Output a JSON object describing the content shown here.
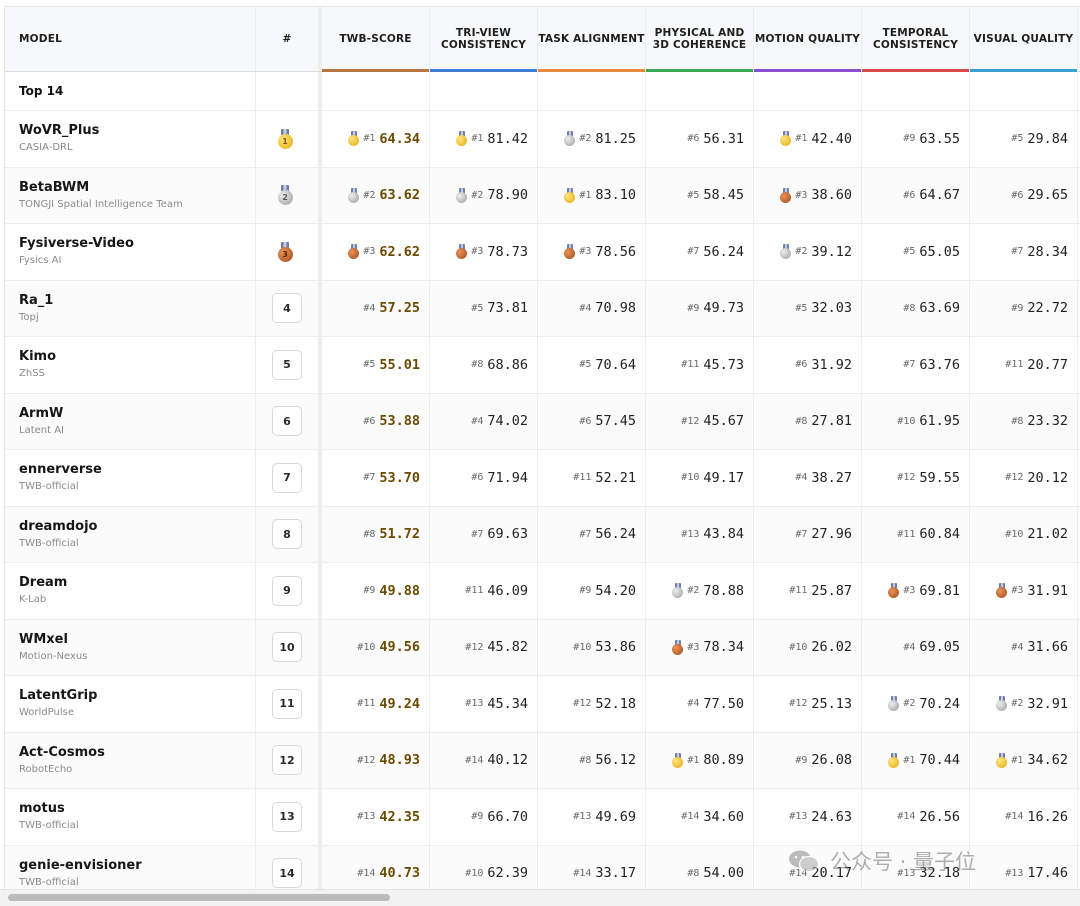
{
  "header": {
    "model": "MODEL",
    "rank": "#",
    "metrics": [
      {
        "label": "TWB-SCORE",
        "color": "#b8743e"
      },
      {
        "label": "TRI-VIEW CONSISTENCY",
        "color": "#3c7fd4"
      },
      {
        "label": "TASK ALIGNMENT",
        "color": "#e98b3a"
      },
      {
        "label": "PHYSICAL AND 3D COHERENCE",
        "color": "#3aaa5a"
      },
      {
        "label": "MOTION QUALITY",
        "color": "#8a4fd0"
      },
      {
        "label": "TEMPORAL CONSISTENCY",
        "color": "#d94a4a"
      },
      {
        "label": "VISUAL QUALITY",
        "color": "#3a9fd4"
      }
    ]
  },
  "group_label": "Top 14",
  "rows": [
    {
      "name": "WoVR_Plus",
      "org": "CASIA-DRL",
      "rank": "1",
      "medal": "gold",
      "cells": [
        {
          "rk": "#1",
          "v": "64.34",
          "medal": "gold"
        },
        {
          "rk": "#1",
          "v": "81.42",
          "medal": "gold"
        },
        {
          "rk": "#2",
          "v": "81.25",
          "medal": "silver"
        },
        {
          "rk": "#6",
          "v": "56.31",
          "medal": ""
        },
        {
          "rk": "#1",
          "v": "42.40",
          "medal": "gold"
        },
        {
          "rk": "#9",
          "v": "63.55",
          "medal": ""
        },
        {
          "rk": "#5",
          "v": "29.84",
          "medal": ""
        }
      ]
    },
    {
      "name": "BetaBWM",
      "org": "TONGJI Spatial Intelligence Team",
      "rank": "2",
      "medal": "silver",
      "cells": [
        {
          "rk": "#2",
          "v": "63.62",
          "medal": "silver"
        },
        {
          "rk": "#2",
          "v": "78.90",
          "medal": "silver"
        },
        {
          "rk": "#1",
          "v": "83.10",
          "medal": "gold"
        },
        {
          "rk": "#5",
          "v": "58.45",
          "medal": ""
        },
        {
          "rk": "#3",
          "v": "38.60",
          "medal": "bronze"
        },
        {
          "rk": "#6",
          "v": "64.67",
          "medal": ""
        },
        {
          "rk": "#6",
          "v": "29.65",
          "medal": ""
        }
      ]
    },
    {
      "name": "Fysiverse-Video",
      "org": "Fysics AI",
      "rank": "3",
      "medal": "bronze",
      "cells": [
        {
          "rk": "#3",
          "v": "62.62",
          "medal": "bronze"
        },
        {
          "rk": "#3",
          "v": "78.73",
          "medal": "bronze"
        },
        {
          "rk": "#3",
          "v": "78.56",
          "medal": "bronze"
        },
        {
          "rk": "#7",
          "v": "56.24",
          "medal": ""
        },
        {
          "rk": "#2",
          "v": "39.12",
          "medal": "silver"
        },
        {
          "rk": "#5",
          "v": "65.05",
          "medal": ""
        },
        {
          "rk": "#7",
          "v": "28.34",
          "medal": ""
        }
      ]
    },
    {
      "name": "Ra_1",
      "org": "Topj",
      "rank": "4",
      "medal": "",
      "cells": [
        {
          "rk": "#4",
          "v": "57.25",
          "medal": ""
        },
        {
          "rk": "#5",
          "v": "73.81",
          "medal": ""
        },
        {
          "rk": "#4",
          "v": "70.98",
          "medal": ""
        },
        {
          "rk": "#9",
          "v": "49.73",
          "medal": ""
        },
        {
          "rk": "#5",
          "v": "32.03",
          "medal": ""
        },
        {
          "rk": "#8",
          "v": "63.69",
          "medal": ""
        },
        {
          "rk": "#9",
          "v": "22.72",
          "medal": ""
        }
      ]
    },
    {
      "name": "Kimo",
      "org": "ZhSS",
      "rank": "5",
      "medal": "",
      "cells": [
        {
          "rk": "#5",
          "v": "55.01",
          "medal": ""
        },
        {
          "rk": "#8",
          "v": "68.86",
          "medal": ""
        },
        {
          "rk": "#5",
          "v": "70.64",
          "medal": ""
        },
        {
          "rk": "#11",
          "v": "45.73",
          "medal": ""
        },
        {
          "rk": "#6",
          "v": "31.92",
          "medal": ""
        },
        {
          "rk": "#7",
          "v": "63.76",
          "medal": ""
        },
        {
          "rk": "#11",
          "v": "20.77",
          "medal": ""
        }
      ]
    },
    {
      "name": "ArmW",
      "org": "Latent AI",
      "rank": "6",
      "medal": "",
      "cells": [
        {
          "rk": "#6",
          "v": "53.88",
          "medal": ""
        },
        {
          "rk": "#4",
          "v": "74.02",
          "medal": ""
        },
        {
          "rk": "#6",
          "v": "57.45",
          "medal": ""
        },
        {
          "rk": "#12",
          "v": "45.67",
          "medal": ""
        },
        {
          "rk": "#8",
          "v": "27.81",
          "medal": ""
        },
        {
          "rk": "#10",
          "v": "61.95",
          "medal": ""
        },
        {
          "rk": "#8",
          "v": "23.32",
          "medal": ""
        }
      ]
    },
    {
      "name": "ennerverse",
      "org": "TWB-official",
      "rank": "7",
      "medal": "",
      "cells": [
        {
          "rk": "#7",
          "v": "53.70",
          "medal": ""
        },
        {
          "rk": "#6",
          "v": "71.94",
          "medal": ""
        },
        {
          "rk": "#11",
          "v": "52.21",
          "medal": ""
        },
        {
          "rk": "#10",
          "v": "49.17",
          "medal": ""
        },
        {
          "rk": "#4",
          "v": "38.27",
          "medal": ""
        },
        {
          "rk": "#12",
          "v": "59.55",
          "medal": ""
        },
        {
          "rk": "#12",
          "v": "20.12",
          "medal": ""
        }
      ]
    },
    {
      "name": "dreamdojo",
      "org": "TWB-official",
      "rank": "8",
      "medal": "",
      "cells": [
        {
          "rk": "#8",
          "v": "51.72",
          "medal": ""
        },
        {
          "rk": "#7",
          "v": "69.63",
          "medal": ""
        },
        {
          "rk": "#7",
          "v": "56.24",
          "medal": ""
        },
        {
          "rk": "#13",
          "v": "43.84",
          "medal": ""
        },
        {
          "rk": "#7",
          "v": "27.96",
          "medal": ""
        },
        {
          "rk": "#11",
          "v": "60.84",
          "medal": ""
        },
        {
          "rk": "#10",
          "v": "21.02",
          "medal": ""
        }
      ]
    },
    {
      "name": "Dream",
      "org": "K-Lab",
      "rank": "9",
      "medal": "",
      "cells": [
        {
          "rk": "#9",
          "v": "49.88",
          "medal": ""
        },
        {
          "rk": "#11",
          "v": "46.09",
          "medal": ""
        },
        {
          "rk": "#9",
          "v": "54.20",
          "medal": ""
        },
        {
          "rk": "#2",
          "v": "78.88",
          "medal": "silver"
        },
        {
          "rk": "#11",
          "v": "25.87",
          "medal": ""
        },
        {
          "rk": "#3",
          "v": "69.81",
          "medal": "bronze"
        },
        {
          "rk": "#3",
          "v": "31.91",
          "medal": "bronze"
        }
      ]
    },
    {
      "name": "WMxel",
      "org": "Motion-Nexus",
      "rank": "10",
      "medal": "",
      "cells": [
        {
          "rk": "#10",
          "v": "49.56",
          "medal": ""
        },
        {
          "rk": "#12",
          "v": "45.82",
          "medal": ""
        },
        {
          "rk": "#10",
          "v": "53.86",
          "medal": ""
        },
        {
          "rk": "#3",
          "v": "78.34",
          "medal": "bronze"
        },
        {
          "rk": "#10",
          "v": "26.02",
          "medal": ""
        },
        {
          "rk": "#4",
          "v": "69.05",
          "medal": ""
        },
        {
          "rk": "#4",
          "v": "31.66",
          "medal": ""
        }
      ]
    },
    {
      "name": "LatentGrip",
      "org": "WorldPulse",
      "rank": "11",
      "medal": "",
      "cells": [
        {
          "rk": "#11",
          "v": "49.24",
          "medal": ""
        },
        {
          "rk": "#13",
          "v": "45.34",
          "medal": ""
        },
        {
          "rk": "#12",
          "v": "52.18",
          "medal": ""
        },
        {
          "rk": "#4",
          "v": "77.50",
          "medal": ""
        },
        {
          "rk": "#12",
          "v": "25.13",
          "medal": ""
        },
        {
          "rk": "#2",
          "v": "70.24",
          "medal": "silver"
        },
        {
          "rk": "#2",
          "v": "32.91",
          "medal": "silver"
        }
      ]
    },
    {
      "name": "Act-Cosmos",
      "org": "RobotEcho",
      "rank": "12",
      "medal": "",
      "cells": [
        {
          "rk": "#12",
          "v": "48.93",
          "medal": ""
        },
        {
          "rk": "#14",
          "v": "40.12",
          "medal": ""
        },
        {
          "rk": "#8",
          "v": "56.12",
          "medal": ""
        },
        {
          "rk": "#1",
          "v": "80.89",
          "medal": "gold"
        },
        {
          "rk": "#9",
          "v": "26.08",
          "medal": ""
        },
        {
          "rk": "#1",
          "v": "70.44",
          "medal": "gold"
        },
        {
          "rk": "#1",
          "v": "34.62",
          "medal": "gold"
        }
      ]
    },
    {
      "name": "motus",
      "org": "TWB-official",
      "rank": "13",
      "medal": "",
      "cells": [
        {
          "rk": "#13",
          "v": "42.35",
          "medal": ""
        },
        {
          "rk": "#9",
          "v": "66.70",
          "medal": ""
        },
        {
          "rk": "#13",
          "v": "49.69",
          "medal": ""
        },
        {
          "rk": "#14",
          "v": "34.60",
          "medal": ""
        },
        {
          "rk": "#13",
          "v": "24.63",
          "medal": ""
        },
        {
          "rk": "#14",
          "v": "26.56",
          "medal": ""
        },
        {
          "rk": "#14",
          "v": "16.26",
          "medal": ""
        }
      ]
    },
    {
      "name": "genie-envisioner",
      "org": "TWB-official",
      "rank": "14",
      "medal": "",
      "cells": [
        {
          "rk": "#14",
          "v": "40.73",
          "medal": ""
        },
        {
          "rk": "#10",
          "v": "62.39",
          "medal": ""
        },
        {
          "rk": "#14",
          "v": "33.17",
          "medal": ""
        },
        {
          "rk": "#8",
          "v": "54.00",
          "medal": ""
        },
        {
          "rk": "#14",
          "v": "20.17",
          "medal": ""
        },
        {
          "rk": "#13",
          "v": "32.18",
          "medal": ""
        },
        {
          "rk": "#13",
          "v": "17.46",
          "medal": ""
        }
      ]
    }
  ],
  "watermark": {
    "text": "公众号 · 量子位",
    "icon": "wechat-icon"
  },
  "colors": {
    "gold": "#e3a80a",
    "silver": "#9a9a9a",
    "bronze": "#a24a16",
    "score_text": "#6b4a00"
  }
}
